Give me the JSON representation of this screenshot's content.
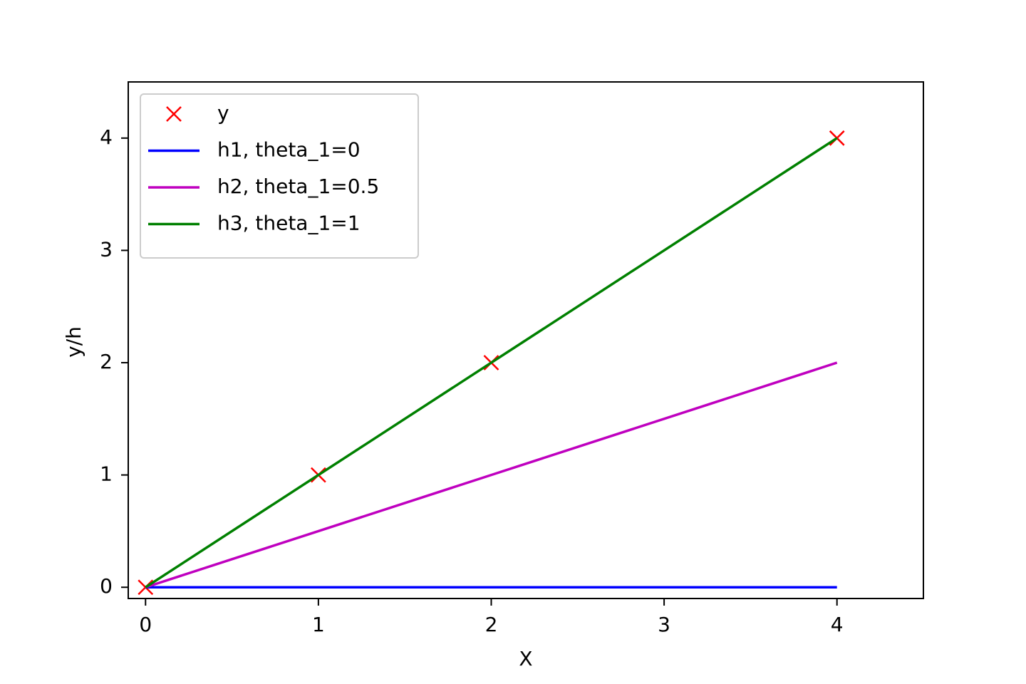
{
  "chart_data": {
    "type": "line",
    "xlabel": "X",
    "ylabel": "y/h",
    "x": [
      0,
      1,
      2,
      4
    ],
    "series": [
      {
        "name": "y",
        "color": "#ff0000",
        "style": "marker",
        "values": [
          0,
          1,
          2,
          4
        ]
      },
      {
        "name": "h1, theta_1=0",
        "color": "#0000ff",
        "style": "line",
        "values": [
          0,
          0,
          0,
          0
        ]
      },
      {
        "name": "h2, theta_1=0.5",
        "color": "#bf00bf",
        "style": "line",
        "values": [
          0,
          0.5,
          1,
          2
        ]
      },
      {
        "name": "h3, theta_1=1",
        "color": "#008000",
        "style": "line",
        "values": [
          0,
          1,
          2,
          4
        ]
      }
    ],
    "xlim": [
      -0.1,
      4.5
    ],
    "ylim": [
      -0.1,
      4.5
    ],
    "xticks": [
      0,
      1,
      2,
      3,
      4
    ],
    "yticks": [
      0,
      1,
      2,
      3,
      4
    ],
    "grid": false,
    "legend": "upper-left"
  }
}
